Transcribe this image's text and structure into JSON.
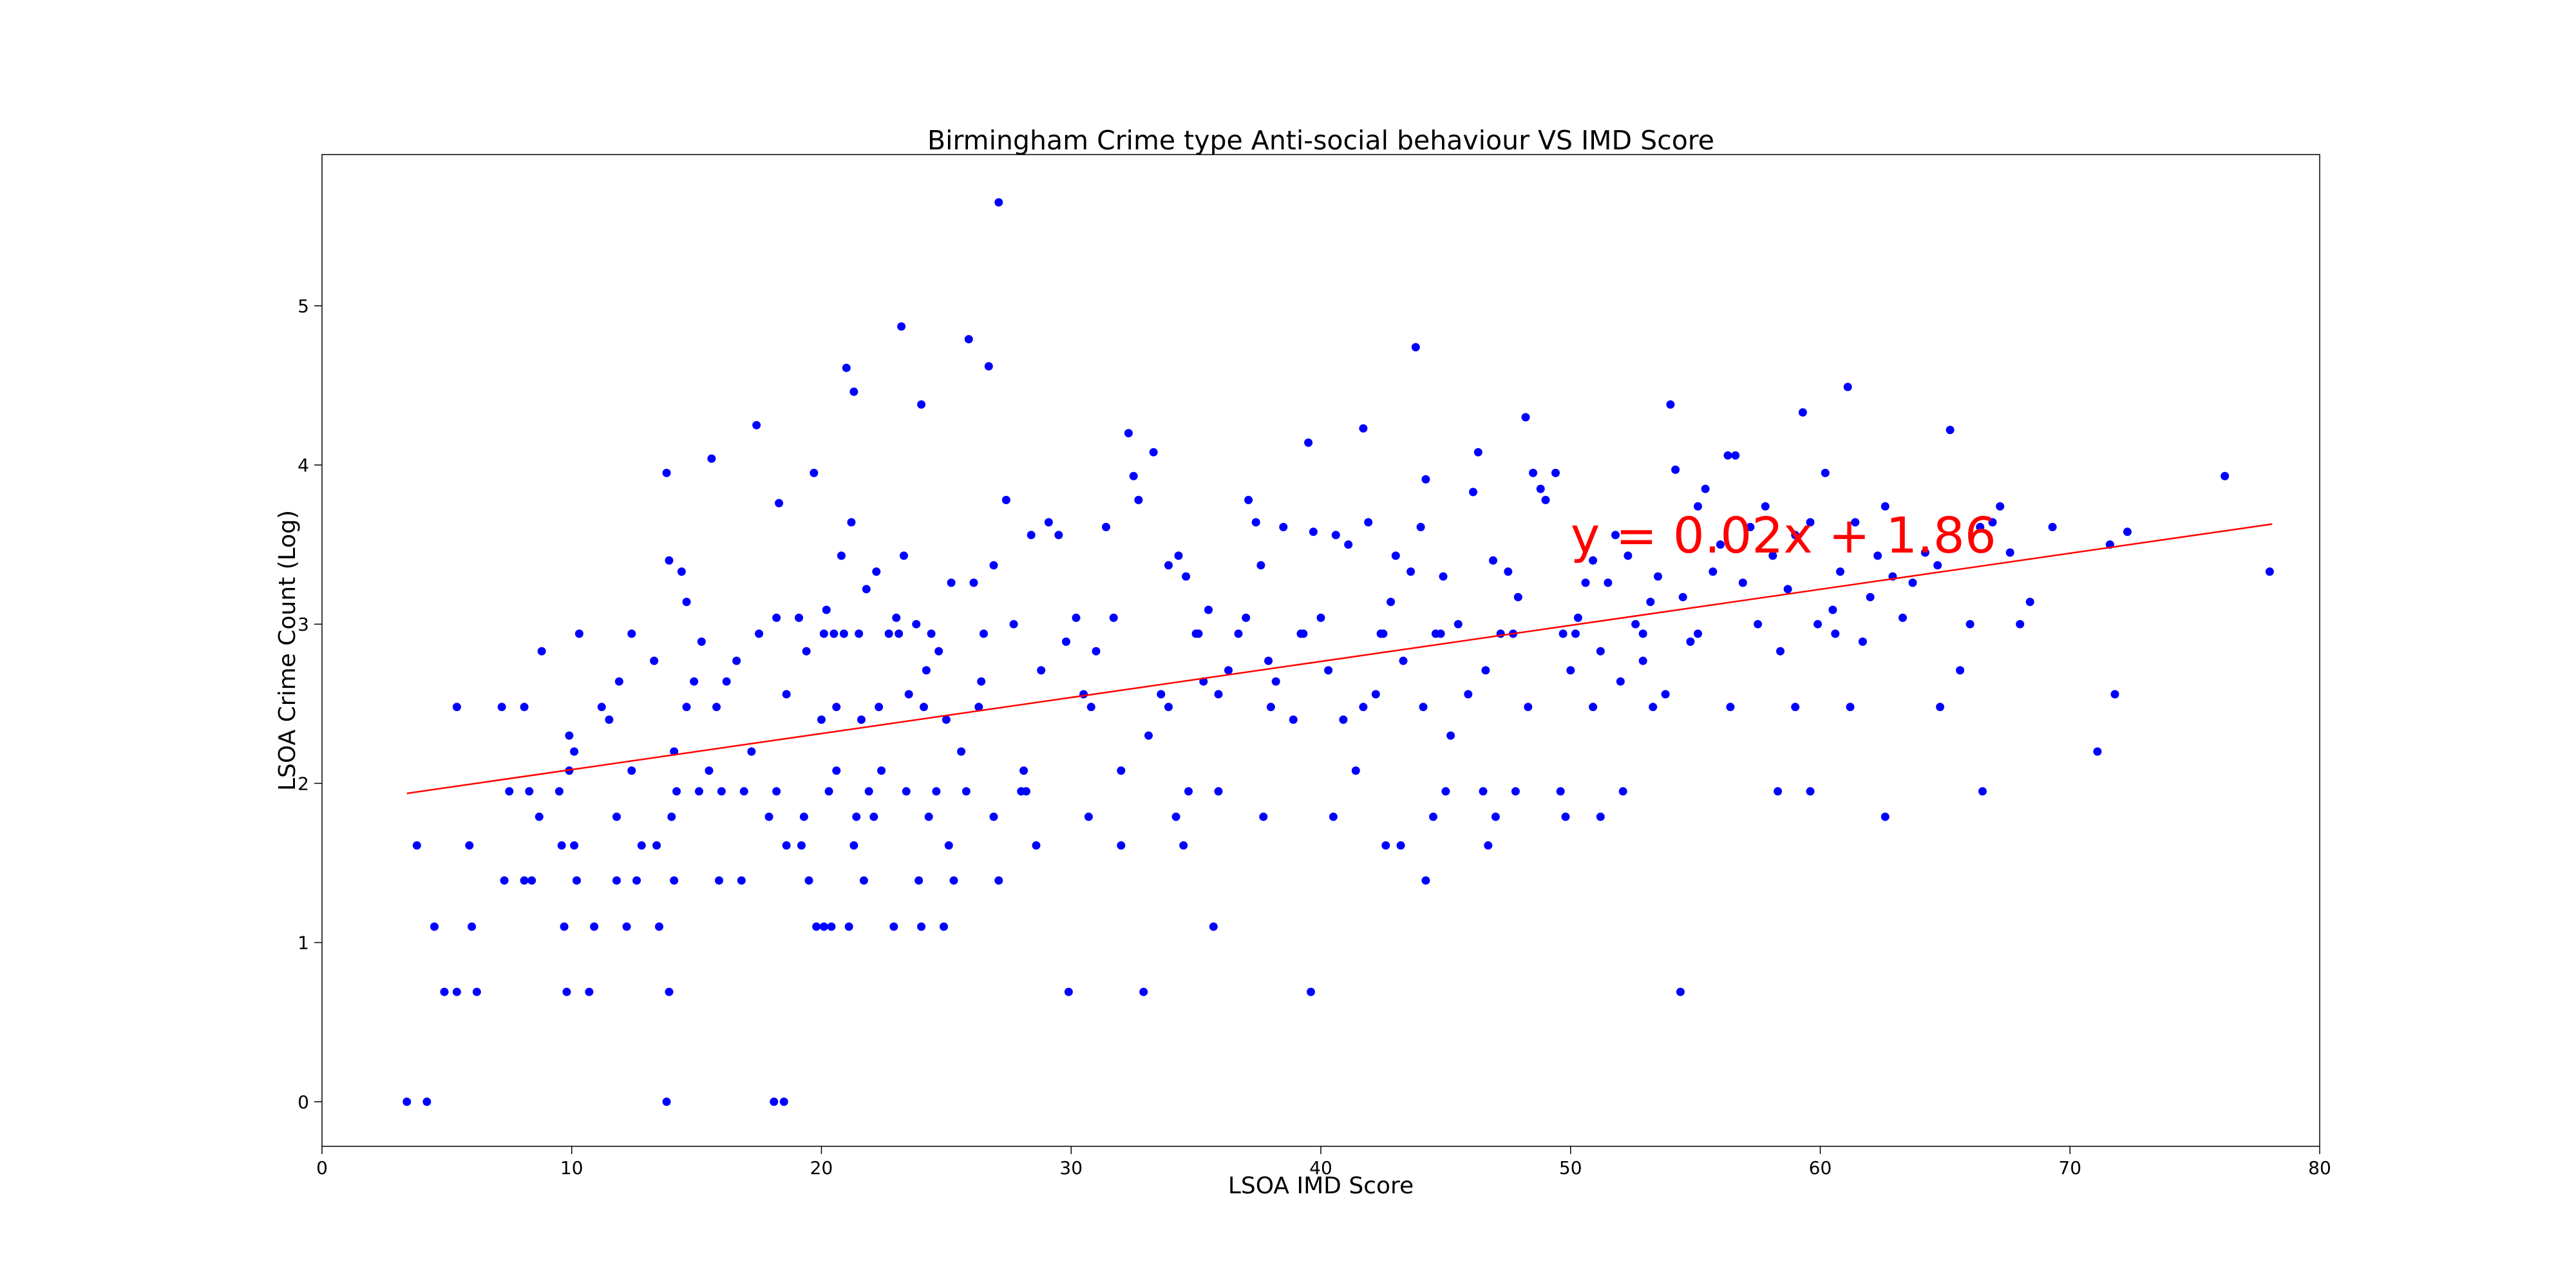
{
  "chart_data": {
    "type": "scatter",
    "title": "Birmingham Crime type Anti-social behaviour VS IMD Score",
    "xlabel": "LSOA IMD Score",
    "ylabel": "LSOA Crime Count (Log)",
    "xlim": [
      0,
      80
    ],
    "ylim": [
      -0.28,
      5.95
    ],
    "xticks": [
      "0",
      "10",
      "20",
      "30",
      "40",
      "50",
      "60",
      "70",
      "80"
    ],
    "yticks": [
      "0",
      "1",
      "2",
      "3",
      "4",
      "5"
    ],
    "grid": false,
    "legend": "none",
    "marker_color": "#0000ff",
    "fit_line": {
      "slope": 0.02265,
      "intercept": 1.86,
      "x_range": [
        3.4,
        78.1
      ],
      "color": "#ff0000",
      "label": "y = 0.02x + 1.86"
    },
    "points": [
      [
        3.4,
        0
      ],
      [
        4.2,
        0
      ],
      [
        13.8,
        0
      ],
      [
        18.1,
        0
      ],
      [
        18.5,
        0
      ],
      [
        4.9,
        0.69
      ],
      [
        5.4,
        0.69
      ],
      [
        6.2,
        0.69
      ],
      [
        9.8,
        0.69
      ],
      [
        10.7,
        0.69
      ],
      [
        13.9,
        0.69
      ],
      [
        29.9,
        0.69
      ],
      [
        32.9,
        0.69
      ],
      [
        39.6,
        0.69
      ],
      [
        54.4,
        0.69
      ],
      [
        4.5,
        1.1
      ],
      [
        6.0,
        1.1
      ],
      [
        9.7,
        1.1
      ],
      [
        10.9,
        1.1
      ],
      [
        12.2,
        1.1
      ],
      [
        13.5,
        1.1
      ],
      [
        19.8,
        1.1
      ],
      [
        20.1,
        1.1
      ],
      [
        20.4,
        1.1
      ],
      [
        21.1,
        1.1
      ],
      [
        22.9,
        1.1
      ],
      [
        24.0,
        1.1
      ],
      [
        24.9,
        1.1
      ],
      [
        35.7,
        1.1
      ],
      [
        3.8,
        1.61
      ],
      [
        5.9,
        1.61
      ],
      [
        9.6,
        1.61
      ],
      [
        10.1,
        1.61
      ],
      [
        12.8,
        1.61
      ],
      [
        13.4,
        1.61
      ],
      [
        18.6,
        1.61
      ],
      [
        19.2,
        1.61
      ],
      [
        21.3,
        1.61
      ],
      [
        25.1,
        1.61
      ],
      [
        28.6,
        1.61
      ],
      [
        32.0,
        1.61
      ],
      [
        34.5,
        1.61
      ],
      [
        42.6,
        1.61
      ],
      [
        43.2,
        1.61
      ],
      [
        46.7,
        1.61
      ],
      [
        7.3,
        1.39
      ],
      [
        8.1,
        1.39
      ],
      [
        8.4,
        1.39
      ],
      [
        10.2,
        1.39
      ],
      [
        11.8,
        1.39
      ],
      [
        12.6,
        1.39
      ],
      [
        14.1,
        1.39
      ],
      [
        15.9,
        1.39
      ],
      [
        16.8,
        1.39
      ],
      [
        19.5,
        1.39
      ],
      [
        21.7,
        1.39
      ],
      [
        23.9,
        1.39
      ],
      [
        25.3,
        1.39
      ],
      [
        27.1,
        1.39
      ],
      [
        44.2,
        1.39
      ],
      [
        7.5,
        1.95
      ],
      [
        8.3,
        1.95
      ],
      [
        9.5,
        1.95
      ],
      [
        14.2,
        1.95
      ],
      [
        15.1,
        1.95
      ],
      [
        16.0,
        1.95
      ],
      [
        16.9,
        1.95
      ],
      [
        18.2,
        1.95
      ],
      [
        20.3,
        1.95
      ],
      [
        21.9,
        1.95
      ],
      [
        23.4,
        1.95
      ],
      [
        24.6,
        1.95
      ],
      [
        25.8,
        1.95
      ],
      [
        28.0,
        1.95
      ],
      [
        28.2,
        1.95
      ],
      [
        34.7,
        1.95
      ],
      [
        35.9,
        1.95
      ],
      [
        45.0,
        1.95
      ],
      [
        46.5,
        1.95
      ],
      [
        47.8,
        1.95
      ],
      [
        49.6,
        1.95
      ],
      [
        52.1,
        1.95
      ],
      [
        58.3,
        1.95
      ],
      [
        59.6,
        1.95
      ],
      [
        66.5,
        1.95
      ],
      [
        8.7,
        1.79
      ],
      [
        11.8,
        1.79
      ],
      [
        14.0,
        1.79
      ],
      [
        17.9,
        1.79
      ],
      [
        19.3,
        1.79
      ],
      [
        21.4,
        1.79
      ],
      [
        22.1,
        1.79
      ],
      [
        24.3,
        1.79
      ],
      [
        26.9,
        1.79
      ],
      [
        30.7,
        1.79
      ],
      [
        34.2,
        1.79
      ],
      [
        37.7,
        1.79
      ],
      [
        40.5,
        1.79
      ],
      [
        44.5,
        1.79
      ],
      [
        47.0,
        1.79
      ],
      [
        49.8,
        1.79
      ],
      [
        51.2,
        1.79
      ],
      [
        62.6,
        1.79
      ],
      [
        10.3,
        2.94
      ],
      [
        12.4,
        2.94
      ],
      [
        17.5,
        2.94
      ],
      [
        20.1,
        2.94
      ],
      [
        20.5,
        2.94
      ],
      [
        20.9,
        2.94
      ],
      [
        21.5,
        2.94
      ],
      [
        23.1,
        2.94
      ],
      [
        24.4,
        2.94
      ],
      [
        26.5,
        2.94
      ],
      [
        35.1,
        2.94
      ],
      [
        39.3,
        2.94
      ],
      [
        42.4,
        2.94
      ],
      [
        44.8,
        2.94
      ],
      [
        47.7,
        2.94
      ],
      [
        50.2,
        2.94
      ],
      [
        52.9,
        2.94
      ],
      [
        55.1,
        2.94
      ],
      [
        60.6,
        2.94
      ],
      [
        5.4,
        2.48
      ],
      [
        7.2,
        2.48
      ],
      [
        8.1,
        2.48
      ],
      [
        11.2,
        2.48
      ],
      [
        14.6,
        2.48
      ],
      [
        15.8,
        2.48
      ],
      [
        20.6,
        2.48
      ],
      [
        22.3,
        2.48
      ],
      [
        24.1,
        2.48
      ],
      [
        26.3,
        2.48
      ],
      [
        30.8,
        2.48
      ],
      [
        33.9,
        2.48
      ],
      [
        38.0,
        2.48
      ],
      [
        41.7,
        2.48
      ],
      [
        44.1,
        2.48
      ],
      [
        48.3,
        2.48
      ],
      [
        50.9,
        2.48
      ],
      [
        53.3,
        2.48
      ],
      [
        56.4,
        2.48
      ],
      [
        59.0,
        2.48
      ],
      [
        61.2,
        2.48
      ],
      [
        64.8,
        2.48
      ],
      [
        8.8,
        2.83
      ],
      [
        9.9,
        2.08
      ],
      [
        9.9,
        2.3
      ],
      [
        10.1,
        2.2
      ],
      [
        11.5,
        2.4
      ],
      [
        11.9,
        2.64
      ],
      [
        12.4,
        2.08
      ],
      [
        13.3,
        2.77
      ],
      [
        13.8,
        3.95
      ],
      [
        13.9,
        3.4
      ],
      [
        14.1,
        2.2
      ],
      [
        14.4,
        3.33
      ],
      [
        14.6,
        3.14
      ],
      [
        14.9,
        2.64
      ],
      [
        15.2,
        2.89
      ],
      [
        15.5,
        2.08
      ],
      [
        15.6,
        4.04
      ],
      [
        16.2,
        2.64
      ],
      [
        16.6,
        2.77
      ],
      [
        17.2,
        2.2
      ],
      [
        17.4,
        4.25
      ],
      [
        18.2,
        3.04
      ],
      [
        18.3,
        3.76
      ],
      [
        18.6,
        2.56
      ],
      [
        19.1,
        3.04
      ],
      [
        19.4,
        2.83
      ],
      [
        19.7,
        3.95
      ],
      [
        20.0,
        2.4
      ],
      [
        20.2,
        3.09
      ],
      [
        20.6,
        2.08
      ],
      [
        20.8,
        3.43
      ],
      [
        21.0,
        4.61
      ],
      [
        21.2,
        3.64
      ],
      [
        21.3,
        4.46
      ],
      [
        21.6,
        2.4
      ],
      [
        21.8,
        3.22
      ],
      [
        22.2,
        3.33
      ],
      [
        22.4,
        2.08
      ],
      [
        22.7,
        2.94
      ],
      [
        23.0,
        3.04
      ],
      [
        23.2,
        4.87
      ],
      [
        23.3,
        3.43
      ],
      [
        23.5,
        2.56
      ],
      [
        23.8,
        3.0
      ],
      [
        24.0,
        4.38
      ],
      [
        24.2,
        2.71
      ],
      [
        24.7,
        2.83
      ],
      [
        25.0,
        2.4
      ],
      [
        25.2,
        3.26
      ],
      [
        25.6,
        2.2
      ],
      [
        25.9,
        4.79
      ],
      [
        26.1,
        3.26
      ],
      [
        26.4,
        2.64
      ],
      [
        26.7,
        4.62
      ],
      [
        26.9,
        3.37
      ],
      [
        27.1,
        5.65
      ],
      [
        27.4,
        3.78
      ],
      [
        27.7,
        3.0
      ],
      [
        28.1,
        2.08
      ],
      [
        28.4,
        3.56
      ],
      [
        28.8,
        2.71
      ],
      [
        29.1,
        3.64
      ],
      [
        29.5,
        3.56
      ],
      [
        29.8,
        2.89
      ],
      [
        30.2,
        3.04
      ],
      [
        30.5,
        2.56
      ],
      [
        31.0,
        2.83
      ],
      [
        31.4,
        3.61
      ],
      [
        31.7,
        3.04
      ],
      [
        32.0,
        2.08
      ],
      [
        32.3,
        4.2
      ],
      [
        32.5,
        3.93
      ],
      [
        32.7,
        3.78
      ],
      [
        33.1,
        2.3
      ],
      [
        33.3,
        4.08
      ],
      [
        33.6,
        2.56
      ],
      [
        33.9,
        3.37
      ],
      [
        34.3,
        3.43
      ],
      [
        34.6,
        3.3
      ],
      [
        35.0,
        2.94
      ],
      [
        35.3,
        2.64
      ],
      [
        35.5,
        3.09
      ],
      [
        35.9,
        2.56
      ],
      [
        36.3,
        2.71
      ],
      [
        36.7,
        2.94
      ],
      [
        37.0,
        3.04
      ],
      [
        37.1,
        3.78
      ],
      [
        37.4,
        3.64
      ],
      [
        37.6,
        3.37
      ],
      [
        37.9,
        2.77
      ],
      [
        38.2,
        2.64
      ],
      [
        38.5,
        3.61
      ],
      [
        38.9,
        2.4
      ],
      [
        39.2,
        2.94
      ],
      [
        39.5,
        4.14
      ],
      [
        39.7,
        3.58
      ],
      [
        40.0,
        3.04
      ],
      [
        40.3,
        2.71
      ],
      [
        40.6,
        3.56
      ],
      [
        40.9,
        2.4
      ],
      [
        41.1,
        3.5
      ],
      [
        41.4,
        2.08
      ],
      [
        41.7,
        4.23
      ],
      [
        41.9,
        3.64
      ],
      [
        42.2,
        2.56
      ],
      [
        42.5,
        2.94
      ],
      [
        42.8,
        3.14
      ],
      [
        43.0,
        3.43
      ],
      [
        43.3,
        2.77
      ],
      [
        43.6,
        3.33
      ],
      [
        43.8,
        4.74
      ],
      [
        44.0,
        3.61
      ],
      [
        44.2,
        3.91
      ],
      [
        44.6,
        2.94
      ],
      [
        44.9,
        3.3
      ],
      [
        45.2,
        2.3
      ],
      [
        45.5,
        3.0
      ],
      [
        45.9,
        2.56
      ],
      [
        46.1,
        3.83
      ],
      [
        46.3,
        4.08
      ],
      [
        46.6,
        2.71
      ],
      [
        46.9,
        3.4
      ],
      [
        47.2,
        2.94
      ],
      [
        47.5,
        3.33
      ],
      [
        47.9,
        3.17
      ],
      [
        48.2,
        4.3
      ],
      [
        48.5,
        3.95
      ],
      [
        48.8,
        3.85
      ],
      [
        49.0,
        3.78
      ],
      [
        49.4,
        3.95
      ],
      [
        49.7,
        2.94
      ],
      [
        50.0,
        2.71
      ],
      [
        50.3,
        3.04
      ],
      [
        50.6,
        3.26
      ],
      [
        50.9,
        3.4
      ],
      [
        51.2,
        2.83
      ],
      [
        51.5,
        3.26
      ],
      [
        51.8,
        3.56
      ],
      [
        52.0,
        2.64
      ],
      [
        52.3,
        3.43
      ],
      [
        52.6,
        3.0
      ],
      [
        52.9,
        2.77
      ],
      [
        53.2,
        3.14
      ],
      [
        53.5,
        3.3
      ],
      [
        53.8,
        2.56
      ],
      [
        54.0,
        4.38
      ],
      [
        54.2,
        3.97
      ],
      [
        54.5,
        3.17
      ],
      [
        54.8,
        2.89
      ],
      [
        55.1,
        3.74
      ],
      [
        55.4,
        3.85
      ],
      [
        55.7,
        3.33
      ],
      [
        56.0,
        3.5
      ],
      [
        56.3,
        4.06
      ],
      [
        56.6,
        4.06
      ],
      [
        56.9,
        3.26
      ],
      [
        57.2,
        3.61
      ],
      [
        57.5,
        3.0
      ],
      [
        57.8,
        3.74
      ],
      [
        58.1,
        3.43
      ],
      [
        58.4,
        2.83
      ],
      [
        58.7,
        3.22
      ],
      [
        59.0,
        3.56
      ],
      [
        59.3,
        4.33
      ],
      [
        59.6,
        3.64
      ],
      [
        59.9,
        3.0
      ],
      [
        60.2,
        3.95
      ],
      [
        60.5,
        3.09
      ],
      [
        60.8,
        3.33
      ],
      [
        61.1,
        4.49
      ],
      [
        61.4,
        3.64
      ],
      [
        61.7,
        2.89
      ],
      [
        62.0,
        3.17
      ],
      [
        62.3,
        3.43
      ],
      [
        62.6,
        3.74
      ],
      [
        62.9,
        3.3
      ],
      [
        63.3,
        3.04
      ],
      [
        63.7,
        3.26
      ],
      [
        64.2,
        3.45
      ],
      [
        64.7,
        3.37
      ],
      [
        65.2,
        4.22
      ],
      [
        65.6,
        2.71
      ],
      [
        66.0,
        3.0
      ],
      [
        66.4,
        3.61
      ],
      [
        66.9,
        3.64
      ],
      [
        67.2,
        3.74
      ],
      [
        67.6,
        3.45
      ],
      [
        68.0,
        3.0
      ],
      [
        68.4,
        3.14
      ],
      [
        69.3,
        3.61
      ],
      [
        71.1,
        2.2
      ],
      [
        71.6,
        3.5
      ],
      [
        71.8,
        2.56
      ],
      [
        72.3,
        3.58
      ],
      [
        76.2,
        3.93
      ],
      [
        78.0,
        3.33
      ]
    ]
  }
}
